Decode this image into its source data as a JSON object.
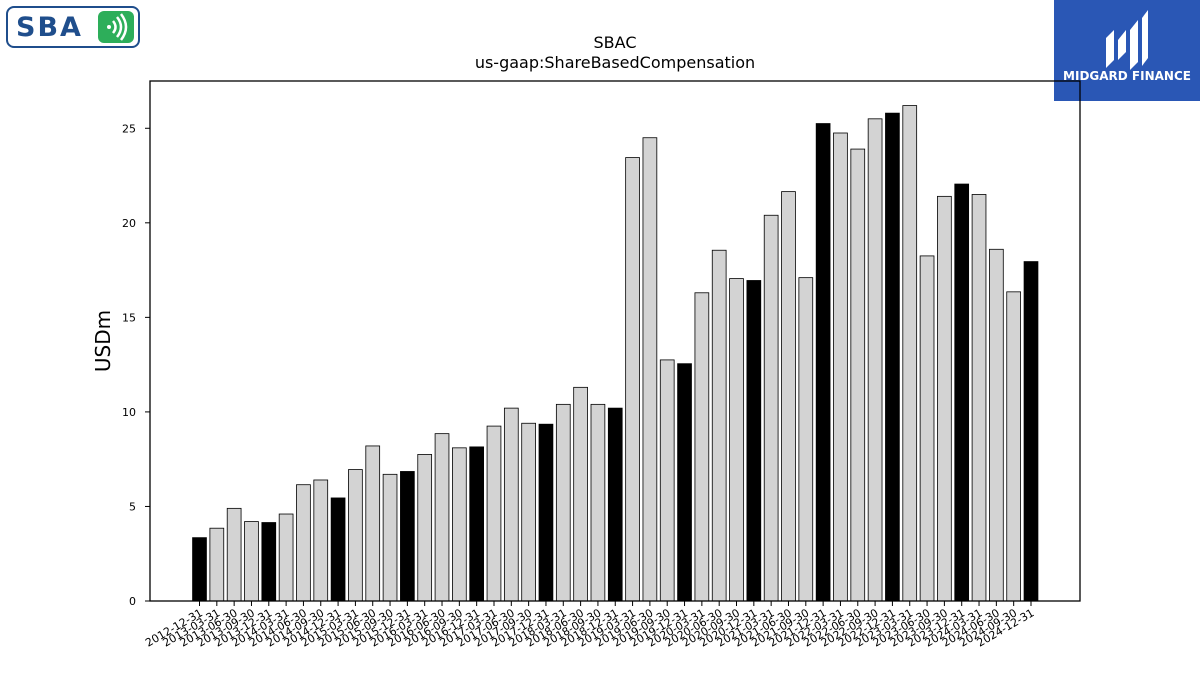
{
  "logos": {
    "left_text": "SBA",
    "right_text": "MIDGARD FINANCE"
  },
  "chart_data": {
    "type": "bar",
    "title": "SBAC",
    "subtitle": "us-gaap:ShareBasedCompensation",
    "ylabel": "USDm",
    "xlabel": "",
    "ylim": [
      0,
      27.5
    ],
    "yticks": [
      0,
      5,
      10,
      15,
      20,
      25
    ],
    "grid": false,
    "bar_colors": {
      "default": "#d3d3d3",
      "fiscal_year_end": "#000000",
      "edge": "#000000"
    },
    "categories": [
      "2012-12-31",
      "2013-03-31",
      "2013-06-30",
      "2013-09-30",
      "2013-12-31",
      "2014-03-31",
      "2014-06-30",
      "2014-09-30",
      "2014-12-31",
      "2015-03-31",
      "2015-06-30",
      "2015-09-30",
      "2015-12-31",
      "2016-03-31",
      "2016-06-30",
      "2016-09-30",
      "2016-12-31",
      "2017-03-31",
      "2017-06-30",
      "2017-09-30",
      "2017-12-31",
      "2018-03-31",
      "2018-06-30",
      "2018-09-30",
      "2018-12-31",
      "2019-03-31",
      "2019-06-30",
      "2019-09-30",
      "2019-12-31",
      "2020-03-31",
      "2020-06-30",
      "2020-09-30",
      "2020-12-31",
      "2021-03-31",
      "2021-06-30",
      "2021-09-30",
      "2021-12-31",
      "2022-03-31",
      "2022-06-30",
      "2022-09-30",
      "2022-12-31",
      "2023-03-31",
      "2023-06-30",
      "2023-09-30",
      "2023-12-31",
      "2024-03-31",
      "2024-06-30",
      "2024-09-30",
      "2024-12-31"
    ],
    "values": [
      3.35,
      3.85,
      4.9,
      4.2,
      4.15,
      4.6,
      6.15,
      6.4,
      5.45,
      6.95,
      8.2,
      6.7,
      6.85,
      7.75,
      8.85,
      8.1,
      8.15,
      9.25,
      10.2,
      9.4,
      9.35,
      10.4,
      11.3,
      10.4,
      10.2,
      23.45,
      24.5,
      12.75,
      12.55,
      16.3,
      18.55,
      17.05,
      16.95,
      20.4,
      21.65,
      17.1,
      25.25,
      24.75,
      23.9,
      25.5,
      25.8,
      26.2,
      18.25,
      21.4,
      22.05,
      21.5,
      18.6,
      16.35,
      17.95
    ]
  }
}
